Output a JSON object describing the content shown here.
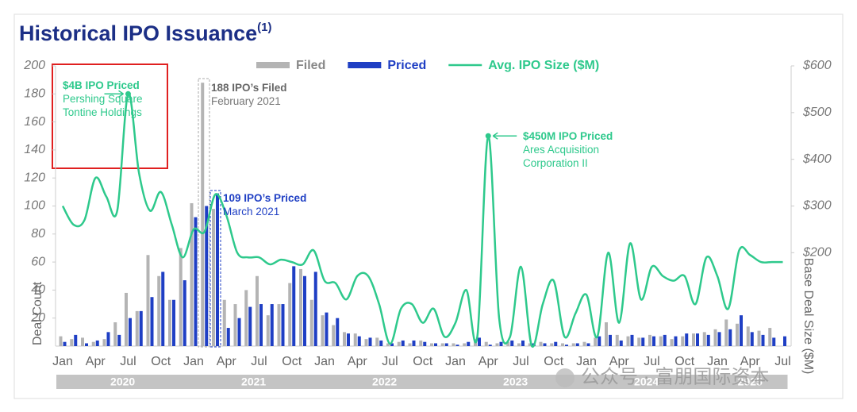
{
  "chart_data": {
    "type": "bar_line",
    "title": "Historical IPO Issuance",
    "title_note": "(1)",
    "y_label": "Deal Count",
    "y2_label": "Base Deal Size ($M)",
    "categories": [
      "Jan",
      null,
      null,
      "Apr",
      null,
      null,
      "Jul",
      null,
      null,
      "Oct",
      null,
      null,
      "Jan",
      null,
      null,
      "Apr",
      null,
      null,
      "Jul",
      null,
      null,
      "Oct",
      null,
      null,
      "Jan",
      null,
      null,
      "Apr",
      null,
      null,
      "Jul",
      null,
      null,
      "Oct",
      null,
      null,
      "Jan",
      null,
      null,
      "Apr",
      null,
      null,
      "Jul",
      null,
      null,
      "Oct",
      null,
      null,
      "Jan",
      null,
      null,
      "Apr",
      null,
      null,
      "Jul",
      null,
      null,
      "Oct",
      null,
      null,
      "Jan",
      null,
      null,
      "Apr",
      null,
      null,
      "Jul"
    ],
    "years": [
      "2020",
      "2021",
      "2022",
      "2023",
      "2024",
      "2025"
    ],
    "series": [
      {
        "name": "Filed",
        "color": "#b4b4b4",
        "kind": "bar",
        "values": [
          7,
          5,
          6,
          3,
          5,
          17,
          38,
          25,
          65,
          50,
          33,
          70,
          102,
          188,
          98,
          33,
          30,
          40,
          50,
          22,
          30,
          45,
          55,
          33,
          22,
          15,
          10,
          9,
          5,
          6,
          2,
          3,
          2,
          4,
          2,
          2,
          2,
          2,
          5,
          3,
          2,
          3,
          2,
          2,
          3,
          2,
          2,
          2,
          3,
          6,
          17,
          8,
          7,
          6,
          8,
          7,
          5,
          7,
          9,
          10,
          12,
          19,
          16,
          14,
          11,
          13,
          null
        ]
      },
      {
        "name": "Priced",
        "color": "#1f3fc4",
        "kind": "bar",
        "values": [
          3,
          8,
          2,
          4,
          10,
          8,
          20,
          25,
          35,
          53,
          33,
          47,
          92,
          100,
          109,
          13,
          20,
          28,
          30,
          30,
          30,
          57,
          50,
          53,
          24,
          20,
          9,
          7,
          6,
          4,
          2,
          4,
          4,
          3,
          2,
          2,
          1,
          3,
          6,
          1,
          3,
          4,
          4,
          2,
          2,
          3,
          1,
          2,
          2,
          7,
          8,
          4,
          8,
          6,
          7,
          8,
          7,
          9,
          9,
          8,
          10,
          12,
          22,
          10,
          8,
          6,
          7
        ]
      },
      {
        "name": "Avg. IPO Size ($M)",
        "color": "#2ec98c",
        "kind": "line",
        "axis": "y2",
        "values": [
          300,
          260,
          270,
          360,
          320,
          290,
          540,
          370,
          290,
          330,
          260,
          190,
          250,
          245,
          325,
          280,
          200,
          190,
          190,
          175,
          185,
          180,
          175,
          205,
          140,
          135,
          100,
          150,
          150,
          90,
          5,
          80,
          90,
          50,
          80,
          20,
          50,
          120,
          20,
          450,
          60,
          20,
          170,
          0,
          90,
          140,
          20,
          70,
          110,
          20,
          200,
          50,
          220,
          100,
          170,
          150,
          140,
          150,
          90,
          190,
          150,
          80,
          205,
          195,
          180,
          180,
          180
        ]
      }
    ],
    "ylim": [
      0,
      200
    ],
    "yticks": [
      20,
      40,
      60,
      80,
      100,
      120,
      140,
      160,
      180,
      200
    ],
    "y2lim": [
      0,
      600
    ],
    "y2ticks": [
      {
        "value": 200,
        "label": "$200"
      },
      {
        "value": 300,
        "label": "$300"
      },
      {
        "value": 400,
        "label": "$400"
      },
      {
        "value": 500,
        "label": "$500"
      },
      {
        "value": 600,
        "label": "$600"
      }
    ],
    "annotations": [
      {
        "title": "$4B IPO Priced",
        "text": "Pershing Square Tontine Holdings"
      },
      {
        "title": "188 IPO’s Filed",
        "text": "February 2021"
      },
      {
        "title": "109 IPO’s Priced",
        "text": "March 2021"
      },
      {
        "title": "$450M IPO Priced",
        "text": "Ares Acquisition Corporation II"
      }
    ],
    "watermark": "公众号 · 富朋国际资本"
  }
}
